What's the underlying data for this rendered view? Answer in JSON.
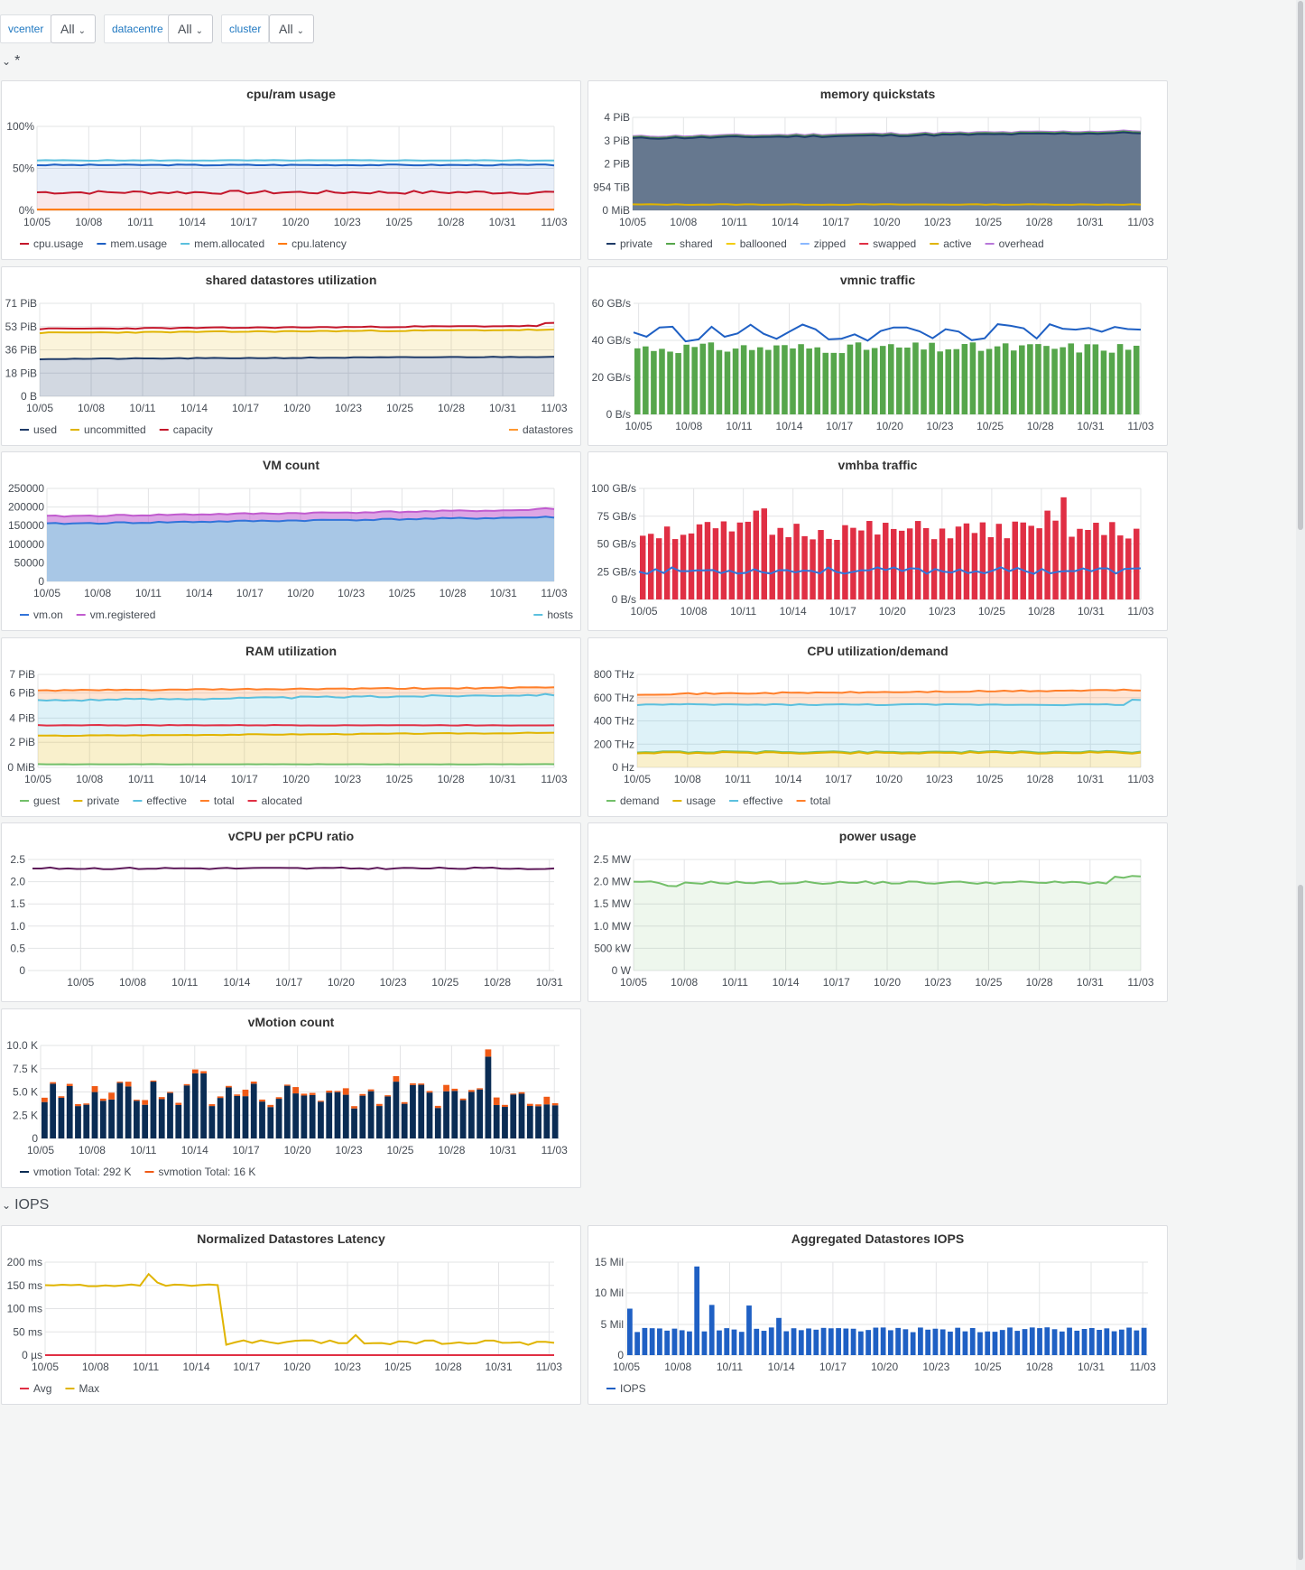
{
  "variables": [
    {
      "label": "vcenter",
      "value": "All"
    },
    {
      "label": "datacentre",
      "value": "All"
    },
    {
      "label": "cluster",
      "value": "All"
    }
  ],
  "rows": {
    "first": "*",
    "second": "IOPS"
  },
  "dates": [
    "10/05",
    "10/08",
    "10/11",
    "10/14",
    "10/17",
    "10/20",
    "10/23",
    "10/25",
    "10/28",
    "10/31",
    "11/03"
  ],
  "colors": {
    "link": "#1f78c1",
    "grid": "#e3e4e6"
  },
  "chart_data": [
    {
      "id": "cpu_ram",
      "title": "cpu/ram usage",
      "type": "line",
      "yticks": [
        "0%",
        "50%",
        "100%"
      ],
      "ylim": [
        0,
        100
      ],
      "series": [
        {
          "name": "cpu.usage",
          "color": "#c4162a",
          "values": [
            21,
            22,
            21,
            21,
            22,
            21,
            20,
            21,
            21,
            22
          ]
        },
        {
          "name": "mem.usage",
          "color": "#1f60c4",
          "values": [
            54,
            54,
            53,
            54,
            54,
            54,
            54,
            54,
            55,
            53
          ]
        },
        {
          "name": "mem.allocated",
          "color": "#5bc0de",
          "values": [
            60,
            60,
            59,
            59,
            60,
            60,
            60,
            60,
            60,
            59
          ]
        },
        {
          "name": "cpu.latency",
          "color": "#ff780a",
          "values": [
            1,
            1,
            1,
            1,
            1,
            1,
            1,
            1,
            1,
            1
          ]
        }
      ]
    },
    {
      "id": "memory_quickstats",
      "title": "memory quickstats",
      "type": "area",
      "yticks": [
        "0 MiB",
        "954 TiB",
        "2 PiB",
        "3 PiB",
        "4 PiB"
      ],
      "series": [
        {
          "name": "private",
          "color": "#1f3b68"
        },
        {
          "name": "shared",
          "color": "#56a64b"
        },
        {
          "name": "ballooned",
          "color": "#f2cc0c"
        },
        {
          "name": "zipped",
          "color": "#8ab8ff"
        },
        {
          "name": "swapped",
          "color": "#e02f44"
        },
        {
          "name": "active",
          "color": "#e0b400"
        },
        {
          "name": "overhead",
          "color": "#b877d9"
        }
      ]
    },
    {
      "id": "shared_datastores",
      "title": "shared datastores utilization",
      "type": "area",
      "yticks": [
        "0 B",
        "18 PiB",
        "36 PiB",
        "53 PiB",
        "71 PiB"
      ],
      "series": [
        {
          "name": "used",
          "color": "#1f3b68"
        },
        {
          "name": "uncommitted",
          "color": "#e0b400"
        },
        {
          "name": "capacity",
          "color": "#c4162a"
        },
        {
          "name": "datastores",
          "color": "#ff9830"
        }
      ]
    },
    {
      "id": "vmnic_traffic",
      "title": "vmnic traffic",
      "type": "bar",
      "yticks": [
        "0 B/s",
        "20 GB/s",
        "40 GB/s",
        "60 GB/s"
      ],
      "series": [
        {
          "name": "bars",
          "color": "#56a64b"
        },
        {
          "name": "line",
          "color": "#1f60c4"
        }
      ]
    },
    {
      "id": "vm_count",
      "title": "VM count",
      "type": "area",
      "yticks": [
        "0",
        "50000",
        "100000",
        "150000",
        "200000",
        "250000"
      ],
      "series": [
        {
          "name": "vm.on",
          "color": "#3274d9"
        },
        {
          "name": "vm.registered",
          "color": "#c15ccf"
        },
        {
          "name": "hosts",
          "color": "#5bc0de"
        }
      ]
    },
    {
      "id": "vmhba_traffic",
      "title": "vmhba traffic",
      "type": "bar",
      "yticks": [
        "0 B/s",
        "25 GB/s",
        "50 GB/s",
        "75 GB/s",
        "100 GB/s"
      ],
      "series": [
        {
          "name": "bars",
          "color": "#e02f44"
        },
        {
          "name": "line",
          "color": "#3274d9"
        }
      ]
    },
    {
      "id": "ram_util",
      "title": "RAM utilization",
      "type": "area",
      "yticks": [
        "0 MiB",
        "2 PiB",
        "4 PiB",
        "6 PiB",
        "7 PiB"
      ],
      "series": [
        {
          "name": "guest",
          "color": "#73bf69"
        },
        {
          "name": "private",
          "color": "#e0b400"
        },
        {
          "name": "effective",
          "color": "#5bc0de"
        },
        {
          "name": "total",
          "color": "#ff7f2a"
        },
        {
          "name": "alocated",
          "color": "#e02f44"
        }
      ]
    },
    {
      "id": "cpu_util",
      "title": "CPU utilization/demand",
      "type": "area",
      "yticks": [
        "0 Hz",
        "200 THz",
        "400 THz",
        "600 THz",
        "800 THz"
      ],
      "series": [
        {
          "name": "demand",
          "color": "#73bf69"
        },
        {
          "name": "usage",
          "color": "#e0b400"
        },
        {
          "name": "effective",
          "color": "#5bc0de"
        },
        {
          "name": "total",
          "color": "#ff7f2a"
        }
      ]
    },
    {
      "id": "vcpu_ratio",
      "title": "vCPU per pCPU ratio",
      "type": "line",
      "yticks": [
        "0",
        "0.5",
        "1.0",
        "1.5",
        "2.0",
        "2.5"
      ],
      "series": [
        {
          "name": "ratio",
          "color": "#5e1a5a",
          "values": [
            2.3,
            2.3,
            2.32,
            2.3,
            2.31,
            2.3,
            2.31,
            2.32,
            2.33,
            2.31
          ]
        }
      ]
    },
    {
      "id": "power",
      "title": "power usage",
      "type": "area",
      "yticks": [
        "0 W",
        "500 kW",
        "1.0 MW",
        "1.5 MW",
        "2.0 MW",
        "2.5 MW"
      ],
      "series": [
        {
          "name": "power",
          "color": "#73bf69"
        }
      ]
    },
    {
      "id": "vmotion",
      "title": "vMotion count",
      "type": "bar",
      "yticks": [
        "0",
        "2.5 K",
        "5.0 K",
        "7.5 K",
        "10.0 K"
      ],
      "series": [
        {
          "name": "vmotion",
          "total": "Total: 292 K",
          "color": "#0a2c54"
        },
        {
          "name": "svmotion",
          "total": "Total: 16 K",
          "color": "#f05a16"
        }
      ]
    },
    {
      "id": "latency",
      "title": "Normalized Datastores Latency",
      "type": "line",
      "yticks": [
        "0 µs",
        "50 ms",
        "100 ms",
        "150 ms",
        "200 ms"
      ],
      "series": [
        {
          "name": "Avg",
          "color": "#e02f44"
        },
        {
          "name": "Max",
          "color": "#e0b400"
        }
      ]
    },
    {
      "id": "iops",
      "title": "Aggregated Datastores IOPS",
      "type": "bar",
      "yticks": [
        "0",
        "5 Mil",
        "10 Mil",
        "15 Mil"
      ],
      "series": [
        {
          "name": "IOPS",
          "color": "#1f60c4"
        }
      ]
    }
  ]
}
